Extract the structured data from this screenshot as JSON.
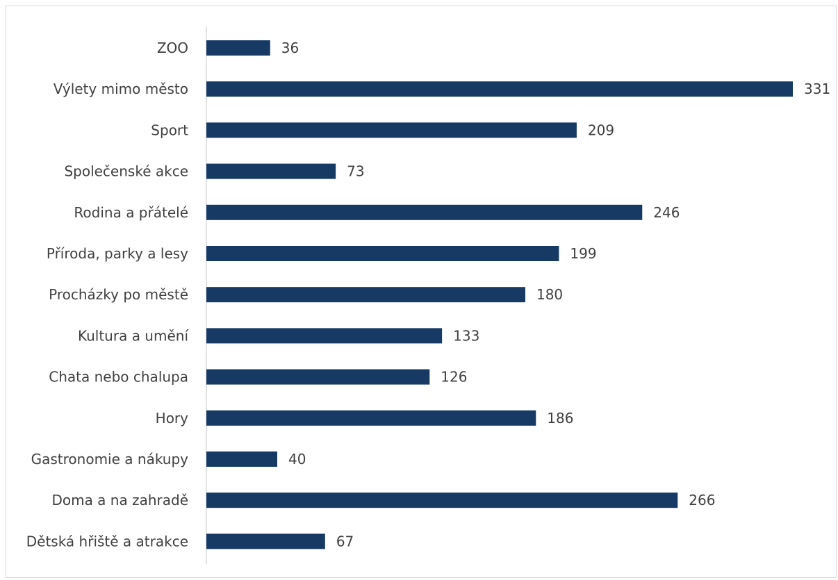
{
  "chart_data": {
    "type": "bar",
    "orientation": "horizontal",
    "categories": [
      "ZOO",
      "Výlety mimo město",
      "Sport",
      "Společenské akce",
      "Rodina a přátelé",
      "Příroda, parky a lesy",
      "Procházky po městě",
      "Kultura a umění",
      "Chata nebo chalupa",
      "Hory",
      "Gastronomie a nákupy",
      "Doma a na zahradě",
      "Dětská hřiště a atrakce"
    ],
    "values": [
      36,
      331,
      209,
      73,
      246,
      199,
      180,
      133,
      126,
      186,
      40,
      266,
      67
    ],
    "title": "",
    "xlabel": "",
    "ylabel": "",
    "xlim": [
      0,
      331
    ],
    "grid": false,
    "data_labels": true,
    "legend": "none",
    "bar_color": "#173a64",
    "axis_color": "#d9d9d9"
  }
}
